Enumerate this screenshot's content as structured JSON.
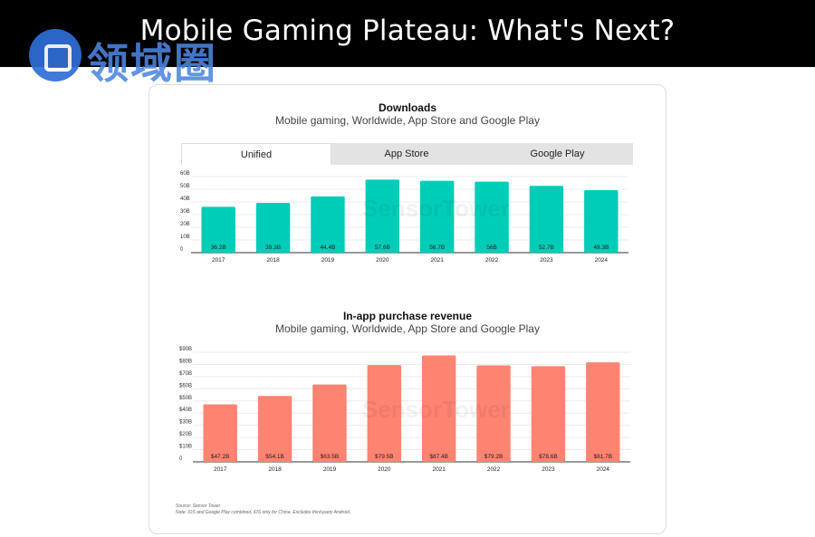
{
  "slide": {
    "title": "Mobile Gaming Plateau: What's Next?"
  },
  "logo": {
    "text": "领域圈"
  },
  "tabs": [
    {
      "label": "Unified",
      "active": true
    },
    {
      "label": "App Store",
      "active": false
    },
    {
      "label": "Google Play",
      "active": false
    }
  ],
  "chart_data": [
    {
      "type": "bar",
      "title": "Downloads",
      "subtitle": "Mobile gaming, Worldwide, App Store and Google Play",
      "categories": [
        "2017",
        "2018",
        "2019",
        "2020",
        "2021",
        "2022",
        "2023",
        "2024"
      ],
      "values": [
        36.2,
        39.3,
        44.4,
        57.6,
        56.7,
        56,
        52.7,
        49.3
      ],
      "value_labels": [
        "36.2B",
        "39.3B",
        "44.4B",
        "57.6B",
        "56.7B",
        "56B",
        "52.7B",
        "49.3B"
      ],
      "y_ticks": [
        "0",
        "10B",
        "20B",
        "30B",
        "40B",
        "50B",
        "60B"
      ],
      "ylim": [
        0,
        60
      ],
      "color": "#00cdb7",
      "grid": true
    },
    {
      "type": "bar",
      "title": "In-app purchase revenue",
      "subtitle": "Mobile gaming, Worldwide, App Store and Google Play",
      "categories": [
        "2017",
        "2018",
        "2019",
        "2020",
        "2021",
        "2022",
        "2023",
        "2024"
      ],
      "values": [
        47.2,
        54.1,
        63.5,
        79.5,
        87.4,
        79.2,
        78.6,
        81.7
      ],
      "value_labels": [
        "$47.2B",
        "$54.1B",
        "$63.5B",
        "$79.5B",
        "$87.4B",
        "$79.2B",
        "$78.6B",
        "$81.7B"
      ],
      "y_ticks": [
        "0",
        "$10B",
        "$20B",
        "$30B",
        "$40B",
        "$50B",
        "$60B",
        "$70B",
        "$80B",
        "$90B"
      ],
      "ylim": [
        0,
        90
      ],
      "color": "#fd8471",
      "grid": true
    }
  ],
  "watermark": "SensorTower",
  "source": {
    "line1": "Source: Sensor Tower",
    "line2": "Note: iOS and Google Play combined. iOS only for China. Excludes third-party Android."
  }
}
